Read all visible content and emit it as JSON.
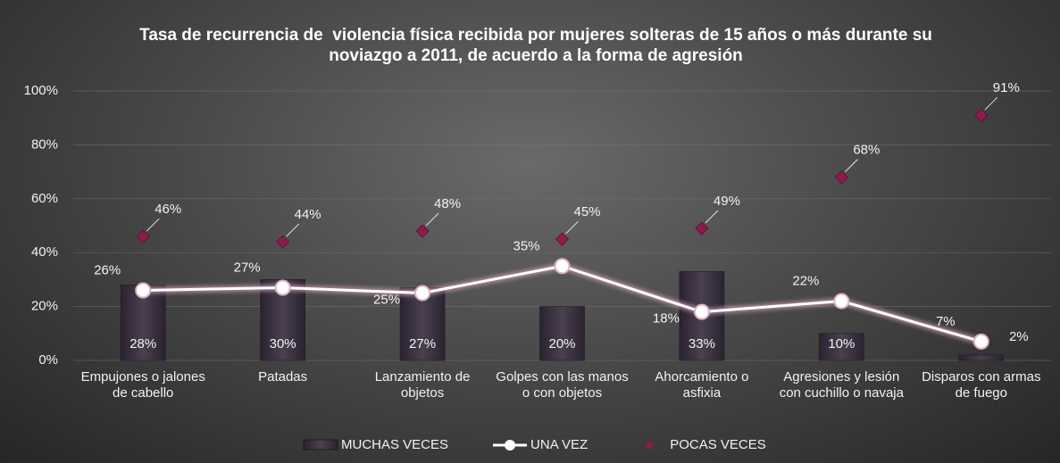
{
  "chart_data": {
    "type": "combo",
    "title": "Tasa de recurrencia de  violencia física recibida por mujeres solteras de 15 años o más durante su noviazgo a 2011, de acuerdo a la forma de agresión",
    "categories": [
      "Empujones o jalones de cabello",
      "Patadas",
      "Lanzamiento de objetos",
      "Golpes con las manos o con objetos",
      "Ahorcamiento o asfixia",
      "Agresiones y lesión con cuchillo o navaja",
      "Disparos con armas de fuego"
    ],
    "series": [
      {
        "name": "MUCHAS VECES",
        "type": "bar",
        "color": "#3e3442",
        "values": [
          28,
          30,
          27,
          20,
          33,
          10,
          2
        ],
        "value_labels": [
          "28%",
          "30%",
          "27%",
          "20%",
          "33%",
          "10%",
          "2%"
        ]
      },
      {
        "name": "UNA VEZ",
        "type": "line",
        "color": "#ffffff",
        "values": [
          26,
          27,
          25,
          35,
          18,
          22,
          7
        ],
        "value_labels": [
          "26%",
          "27%",
          "25%",
          "35%",
          "18%",
          "22%",
          "7%"
        ]
      },
      {
        "name": "POCAS VECES",
        "type": "marker",
        "color": "#8c1c4e",
        "values": [
          46,
          44,
          48,
          45,
          49,
          68,
          91
        ],
        "value_labels": [
          "46%",
          "44%",
          "48%",
          "45%",
          "49%",
          "68%",
          "91%"
        ]
      }
    ],
    "ylim": [
      0,
      100
    ],
    "yticks": [
      {
        "value": 0,
        "label": "0%"
      },
      {
        "value": 20,
        "label": "20%"
      },
      {
        "value": 40,
        "label": "40%"
      },
      {
        "value": 60,
        "label": "60%"
      },
      {
        "value": 80,
        "label": "80%"
      },
      {
        "value": 100,
        "label": "100%"
      }
    ],
    "grid": true,
    "legend": "bottom"
  }
}
